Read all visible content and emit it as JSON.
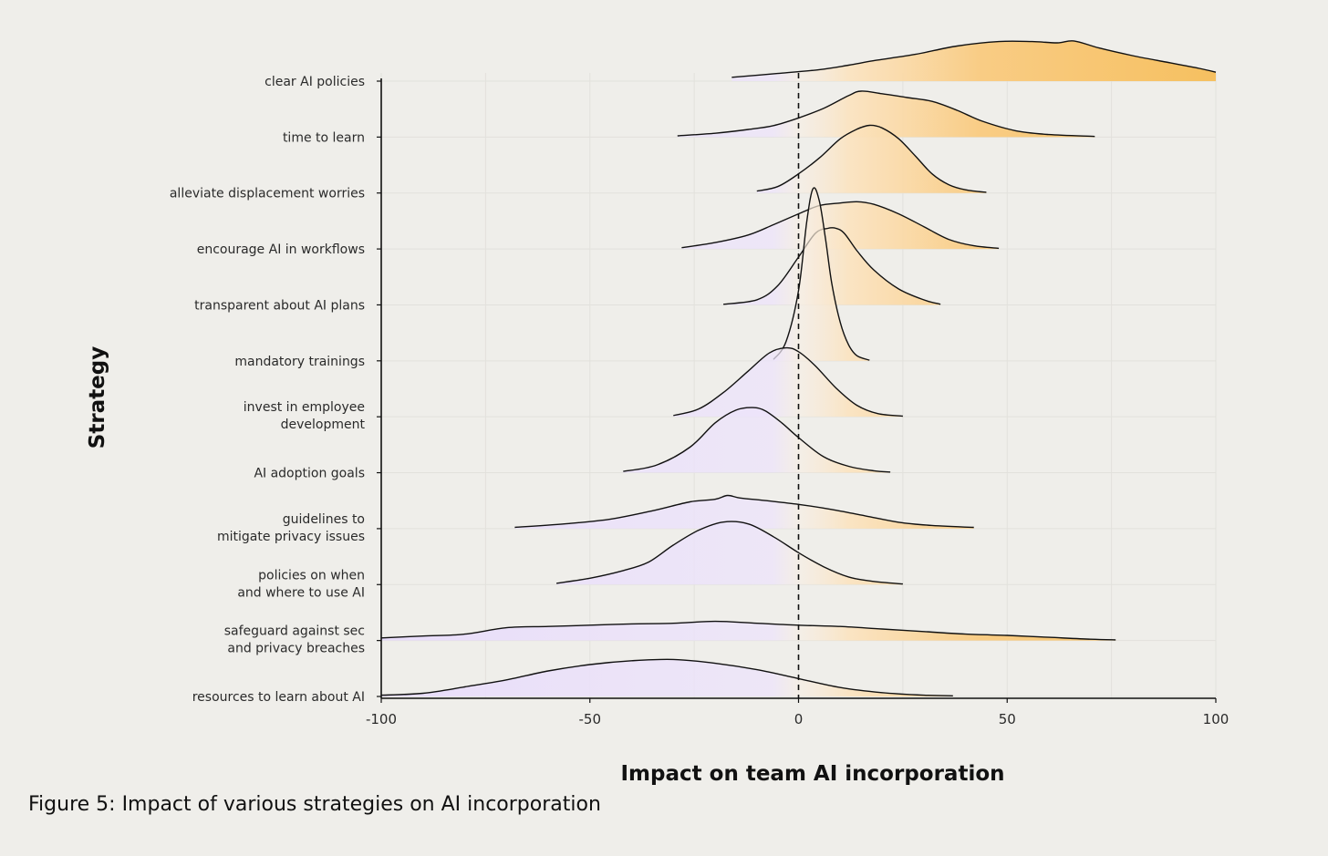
{
  "colors": {
    "background": "#efeeea",
    "negative_fill": "#e8dcfb",
    "positive_fill": "#f9c877",
    "outline": "#111111",
    "zero_line": "#111111"
  },
  "caption": "Figure 5: Impact of various strategies on AI incorporation",
  "chart_data": {
    "type": "ridgeline",
    "title": "",
    "xlabel": "Impact on team AI incorporation",
    "ylabel": "Strategy",
    "xlim": [
      -100,
      100
    ],
    "xticks": [
      -100,
      -50,
      0,
      50,
      100
    ],
    "xtick_labels": [
      "-100",
      "-50",
      "0",
      "50",
      "100"
    ],
    "reference_line": {
      "x": 0,
      "style": "dashed"
    },
    "grid": true,
    "fill": "gradient: purple below 0, orange above 0",
    "series": [
      {
        "name": "clear AI policies",
        "label_lines": [
          "clear AI policies"
        ],
        "x": [
          -16,
          -5,
          5,
          12,
          18,
          28,
          38,
          48,
          56,
          62,
          66,
          72,
          80,
          88,
          96,
          100
        ],
        "density": [
          0.06,
          0.12,
          0.18,
          0.25,
          0.32,
          0.42,
          0.55,
          0.62,
          0.62,
          0.6,
          0.63,
          0.52,
          0.4,
          0.3,
          0.2,
          0.14
        ]
      },
      {
        "name": "time to learn",
        "label_lines": [
          "time to learn"
        ],
        "x": [
          -29,
          -20,
          -12,
          -6,
          0,
          6,
          12,
          15,
          20,
          26,
          32,
          38,
          44,
          52,
          60,
          71
        ],
        "density": [
          0.02,
          0.06,
          0.12,
          0.18,
          0.3,
          0.45,
          0.65,
          0.72,
          0.68,
          0.62,
          0.56,
          0.42,
          0.25,
          0.1,
          0.04,
          0.01
        ]
      },
      {
        "name": "alleviate displacement worries",
        "label_lines": [
          "alleviate displacement worries"
        ],
        "x": [
          -10,
          -5,
          0,
          5,
          10,
          14,
          17,
          20,
          24,
          28,
          32,
          36,
          40,
          45
        ],
        "density": [
          0.03,
          0.1,
          0.3,
          0.55,
          0.85,
          1.0,
          1.06,
          1.02,
          0.85,
          0.58,
          0.3,
          0.13,
          0.05,
          0.01
        ]
      },
      {
        "name": "encourage AI in workflows",
        "label_lines": [
          "encourage AI in workflows"
        ],
        "x": [
          -28,
          -20,
          -12,
          -6,
          0,
          5,
          10,
          14,
          18,
          24,
          30,
          36,
          42,
          48
        ],
        "density": [
          0.02,
          0.1,
          0.22,
          0.38,
          0.55,
          0.68,
          0.72,
          0.74,
          0.7,
          0.55,
          0.35,
          0.15,
          0.05,
          0.01
        ]
      },
      {
        "name": "transparent about AI plans",
        "label_lines": [
          "transparent about AI plans"
        ],
        "x": [
          -18,
          -10,
          -5,
          0,
          4,
          7,
          9,
          11,
          14,
          18,
          24,
          30,
          34
        ],
        "density": [
          0.01,
          0.08,
          0.3,
          0.75,
          1.12,
          1.2,
          1.2,
          1.12,
          0.85,
          0.55,
          0.25,
          0.08,
          0.01
        ]
      },
      {
        "name": "mandatory trainings",
        "label_lines": [
          "mandatory trainings"
        ],
        "x": [
          -6,
          -3,
          0,
          2,
          3.5,
          5,
          6.5,
          8,
          10,
          12,
          14,
          17
        ],
        "density": [
          0.02,
          0.3,
          1.1,
          2.2,
          2.7,
          2.5,
          1.9,
          1.2,
          0.6,
          0.25,
          0.08,
          0.01
        ]
      },
      {
        "name": "invest in employee development",
        "label_lines": [
          "invest in employee",
          "development"
        ],
        "x": [
          -30,
          -24,
          -18,
          -12,
          -7,
          -3,
          0,
          4,
          9,
          14,
          19,
          25
        ],
        "density": [
          0.02,
          0.12,
          0.38,
          0.72,
          1.0,
          1.08,
          1.02,
          0.8,
          0.45,
          0.18,
          0.05,
          0.01
        ]
      },
      {
        "name": "AI adoption goals",
        "label_lines": [
          "AI adoption goals"
        ],
        "x": [
          -42,
          -34,
          -26,
          -20,
          -15,
          -11,
          -8,
          -4,
          0,
          6,
          12,
          18,
          22
        ],
        "density": [
          0.02,
          0.12,
          0.4,
          0.78,
          0.98,
          1.02,
          0.97,
          0.78,
          0.55,
          0.25,
          0.1,
          0.03,
          0.01
        ]
      },
      {
        "name": "guidelines to mitigate privacy issues",
        "label_lines": [
          "guidelines to",
          "mitigate privacy issues"
        ],
        "x": [
          -68,
          -55,
          -45,
          -35,
          -26,
          -20,
          -17,
          -14,
          -8,
          0,
          8,
          16,
          24,
          32,
          42
        ],
        "density": [
          0.02,
          0.08,
          0.15,
          0.28,
          0.42,
          0.46,
          0.52,
          0.48,
          0.44,
          0.38,
          0.3,
          0.2,
          0.1,
          0.05,
          0.02
        ]
      },
      {
        "name": "policies on when and where to use AI",
        "label_lines": [
          "policies on when",
          "and where to use AI"
        ],
        "x": [
          -58,
          -50,
          -42,
          -36,
          -30,
          -24,
          -18,
          -12,
          -6,
          0,
          6,
          12,
          18,
          25
        ],
        "density": [
          0.02,
          0.1,
          0.22,
          0.35,
          0.62,
          0.85,
          0.98,
          0.95,
          0.75,
          0.5,
          0.28,
          0.12,
          0.05,
          0.01
        ]
      },
      {
        "name": "safeguard against sec and privacy breaches",
        "label_lines": [
          "safeguard against sec",
          "and privacy breaches"
        ],
        "x": [
          -100,
          -90,
          -80,
          -70,
          -60,
          -50,
          -40,
          -30,
          -20,
          -10,
          0,
          10,
          20,
          30,
          40,
          50,
          60,
          70,
          76
        ],
        "density": [
          0.04,
          0.07,
          0.1,
          0.2,
          0.22,
          0.24,
          0.26,
          0.27,
          0.3,
          0.27,
          0.24,
          0.22,
          0.18,
          0.14,
          0.1,
          0.08,
          0.05,
          0.02,
          0.01
        ]
      },
      {
        "name": "resources to learn about AI",
        "label_lines": [
          "resources to learn about AI"
        ],
        "x": [
          -100,
          -90,
          -80,
          -70,
          -60,
          -50,
          -40,
          -30,
          -20,
          -10,
          0,
          10,
          20,
          30,
          37
        ],
        "density": [
          0.02,
          0.05,
          0.15,
          0.26,
          0.4,
          0.5,
          0.56,
          0.58,
          0.52,
          0.42,
          0.28,
          0.14,
          0.06,
          0.02,
          0.01
        ]
      }
    ]
  }
}
